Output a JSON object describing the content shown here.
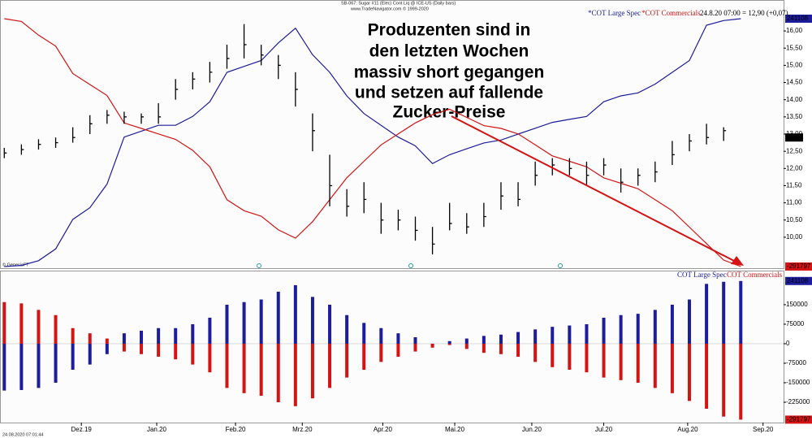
{
  "chart_data": [
    {
      "type": "ohlc",
      "header": "SB-067: Sugar #11 (Elec) Cont Liq @ ICE-US (Daily bars)",
      "subheader": "www.TradeNavigator.com © 1999-2020",
      "credit": "© GenesisFT",
      "status": "24.8.20 07:00 = 12,90 (+0,07)",
      "overlay_legend": [
        "*COT Large Spec",
        "*COT Commercials"
      ],
      "annotation": [
        "Produzenten sind in",
        "den letzten Wochen",
        "massiv short gegangen",
        "und setzen auf fallende",
        "Zucker-Preise"
      ],
      "color": "#000000",
      "close": [
        12.45,
        12.55,
        12.7,
        12.75,
        12.9,
        13.3,
        13.55,
        13.5,
        13.5,
        13.5,
        14.3,
        14.6,
        14.8,
        15.2,
        15.6,
        15.3,
        15.0,
        14.3,
        13.1,
        11.5,
        10.9,
        11.1,
        10.5,
        10.5,
        10.2,
        9.8,
        10.4,
        10.3,
        10.6,
        11.2,
        11.1,
        11.8,
        12.1,
        12.0,
        11.8,
        12.1,
        11.6,
        11.8,
        11.9,
        12.4,
        12.8,
        12.9,
        13.1,
        null
      ],
      "high": [
        12.6,
        12.7,
        12.85,
        12.9,
        13.2,
        13.55,
        13.7,
        13.65,
        13.6,
        13.9,
        14.6,
        14.8,
        15.1,
        15.6,
        16.2,
        15.6,
        15.3,
        14.8,
        13.6,
        12.4,
        11.4,
        11.6,
        11.0,
        10.8,
        10.6,
        10.3,
        11.0,
        10.7,
        11.0,
        11.6,
        11.6,
        12.2,
        12.3,
        12.3,
        12.2,
        12.3,
        12.0,
        12.0,
        12.2,
        12.8,
        13.0,
        13.3,
        13.2,
        null
      ],
      "low": [
        12.3,
        12.4,
        12.55,
        12.6,
        12.75,
        13.0,
        13.3,
        13.3,
        13.3,
        13.3,
        14.0,
        14.3,
        14.5,
        14.9,
        15.2,
        15.0,
        14.6,
        13.8,
        12.5,
        10.9,
        10.6,
        10.7,
        10.1,
        10.2,
        9.9,
        9.5,
        10.2,
        10.1,
        10.3,
        10.8,
        10.9,
        11.5,
        11.8,
        11.8,
        11.5,
        11.8,
        11.3,
        11.5,
        11.6,
        12.1,
        12.5,
        12.7,
        12.8,
        null
      ],
      "last_label": {
        "value": 12.9,
        "label": "12,90"
      },
      "ylim": [
        9.1,
        16.9
      ],
      "yticks": [
        {
          "value": 10,
          "label": "10,00"
        },
        {
          "value": 10.5,
          "label": "10,50"
        },
        {
          "value": 11,
          "label": "11,00"
        },
        {
          "value": 11.5,
          "label": "11,50"
        },
        {
          "value": 12,
          "label": "12,00"
        },
        {
          "value": 12.5,
          "label": "12,50"
        },
        {
          "value": 13,
          "label": "13,00"
        },
        {
          "value": 13.5,
          "label": "13,50"
        },
        {
          "value": 14,
          "label": "14,00"
        },
        {
          "value": 14.5,
          "label": "14,50"
        },
        {
          "value": 15,
          "label": "15,00"
        },
        {
          "value": 15.5,
          "label": "15,50"
        },
        {
          "value": 16,
          "label": "16,00"
        }
      ]
    },
    {
      "type": "bar",
      "timestamp": "24.08.2020 07:01:44",
      "series": [
        {
          "name": "COT Large Spec",
          "color": "#1c1c9c",
          "values": [
            -180000,
            -178000,
            -170000,
            -150000,
            -100000,
            -80000,
            -40000,
            40000,
            50000,
            60000,
            60000,
            75000,
            100000,
            150000,
            160000,
            170000,
            200000,
            225000,
            180000,
            150000,
            110000,
            80000,
            60000,
            40000,
            25000,
            -5000,
            10000,
            20000,
            30000,
            35000,
            45000,
            55000,
            65000,
            70000,
            75000,
            100000,
            110000,
            115000,
            130000,
            150000,
            170000,
            230000,
            238000,
            241108
          ]
        },
        {
          "name": "COT Commercials",
          "color": "#d41414",
          "values": [
            160000,
            155000,
            130000,
            110000,
            60000,
            40000,
            20000,
            -30000,
            -40000,
            -50000,
            -60000,
            -80000,
            -110000,
            -170000,
            -190000,
            -200000,
            -225000,
            -240000,
            -210000,
            -170000,
            -130000,
            -100000,
            -70000,
            -50000,
            -30000,
            -15000,
            -5000,
            -20000,
            -35000,
            -40000,
            -50000,
            -70000,
            -90000,
            -100000,
            -110000,
            -130000,
            -140000,
            -150000,
            -170000,
            -190000,
            -220000,
            -250000,
            -280000,
            -291797
          ]
        }
      ],
      "ylim": [
        -303000,
        281000
      ],
      "yticks": [
        -225000,
        -150000,
        -75000,
        0,
        75000,
        150000
      ],
      "xlim": [
        -0.25,
        45.5
      ],
      "xticks": [
        {
          "value": 4.5,
          "label": "Dez.19"
        },
        {
          "value": 8.9,
          "label": "Jan.20"
        },
        {
          "value": 13.5,
          "label": "Feb.20"
        },
        {
          "value": 17.4,
          "label": "Mrz.20"
        },
        {
          "value": 22.1,
          "label": "Apr.20"
        },
        {
          "value": 26.3,
          "label": "Mai.20"
        },
        {
          "value": 30.8,
          "label": "Jun.20"
        },
        {
          "value": 35.0,
          "label": "Jul.20"
        },
        {
          "value": 39.9,
          "label": "Aug.20"
        },
        {
          "value": 44.3,
          "label": "Sep.20"
        }
      ]
    }
  ]
}
